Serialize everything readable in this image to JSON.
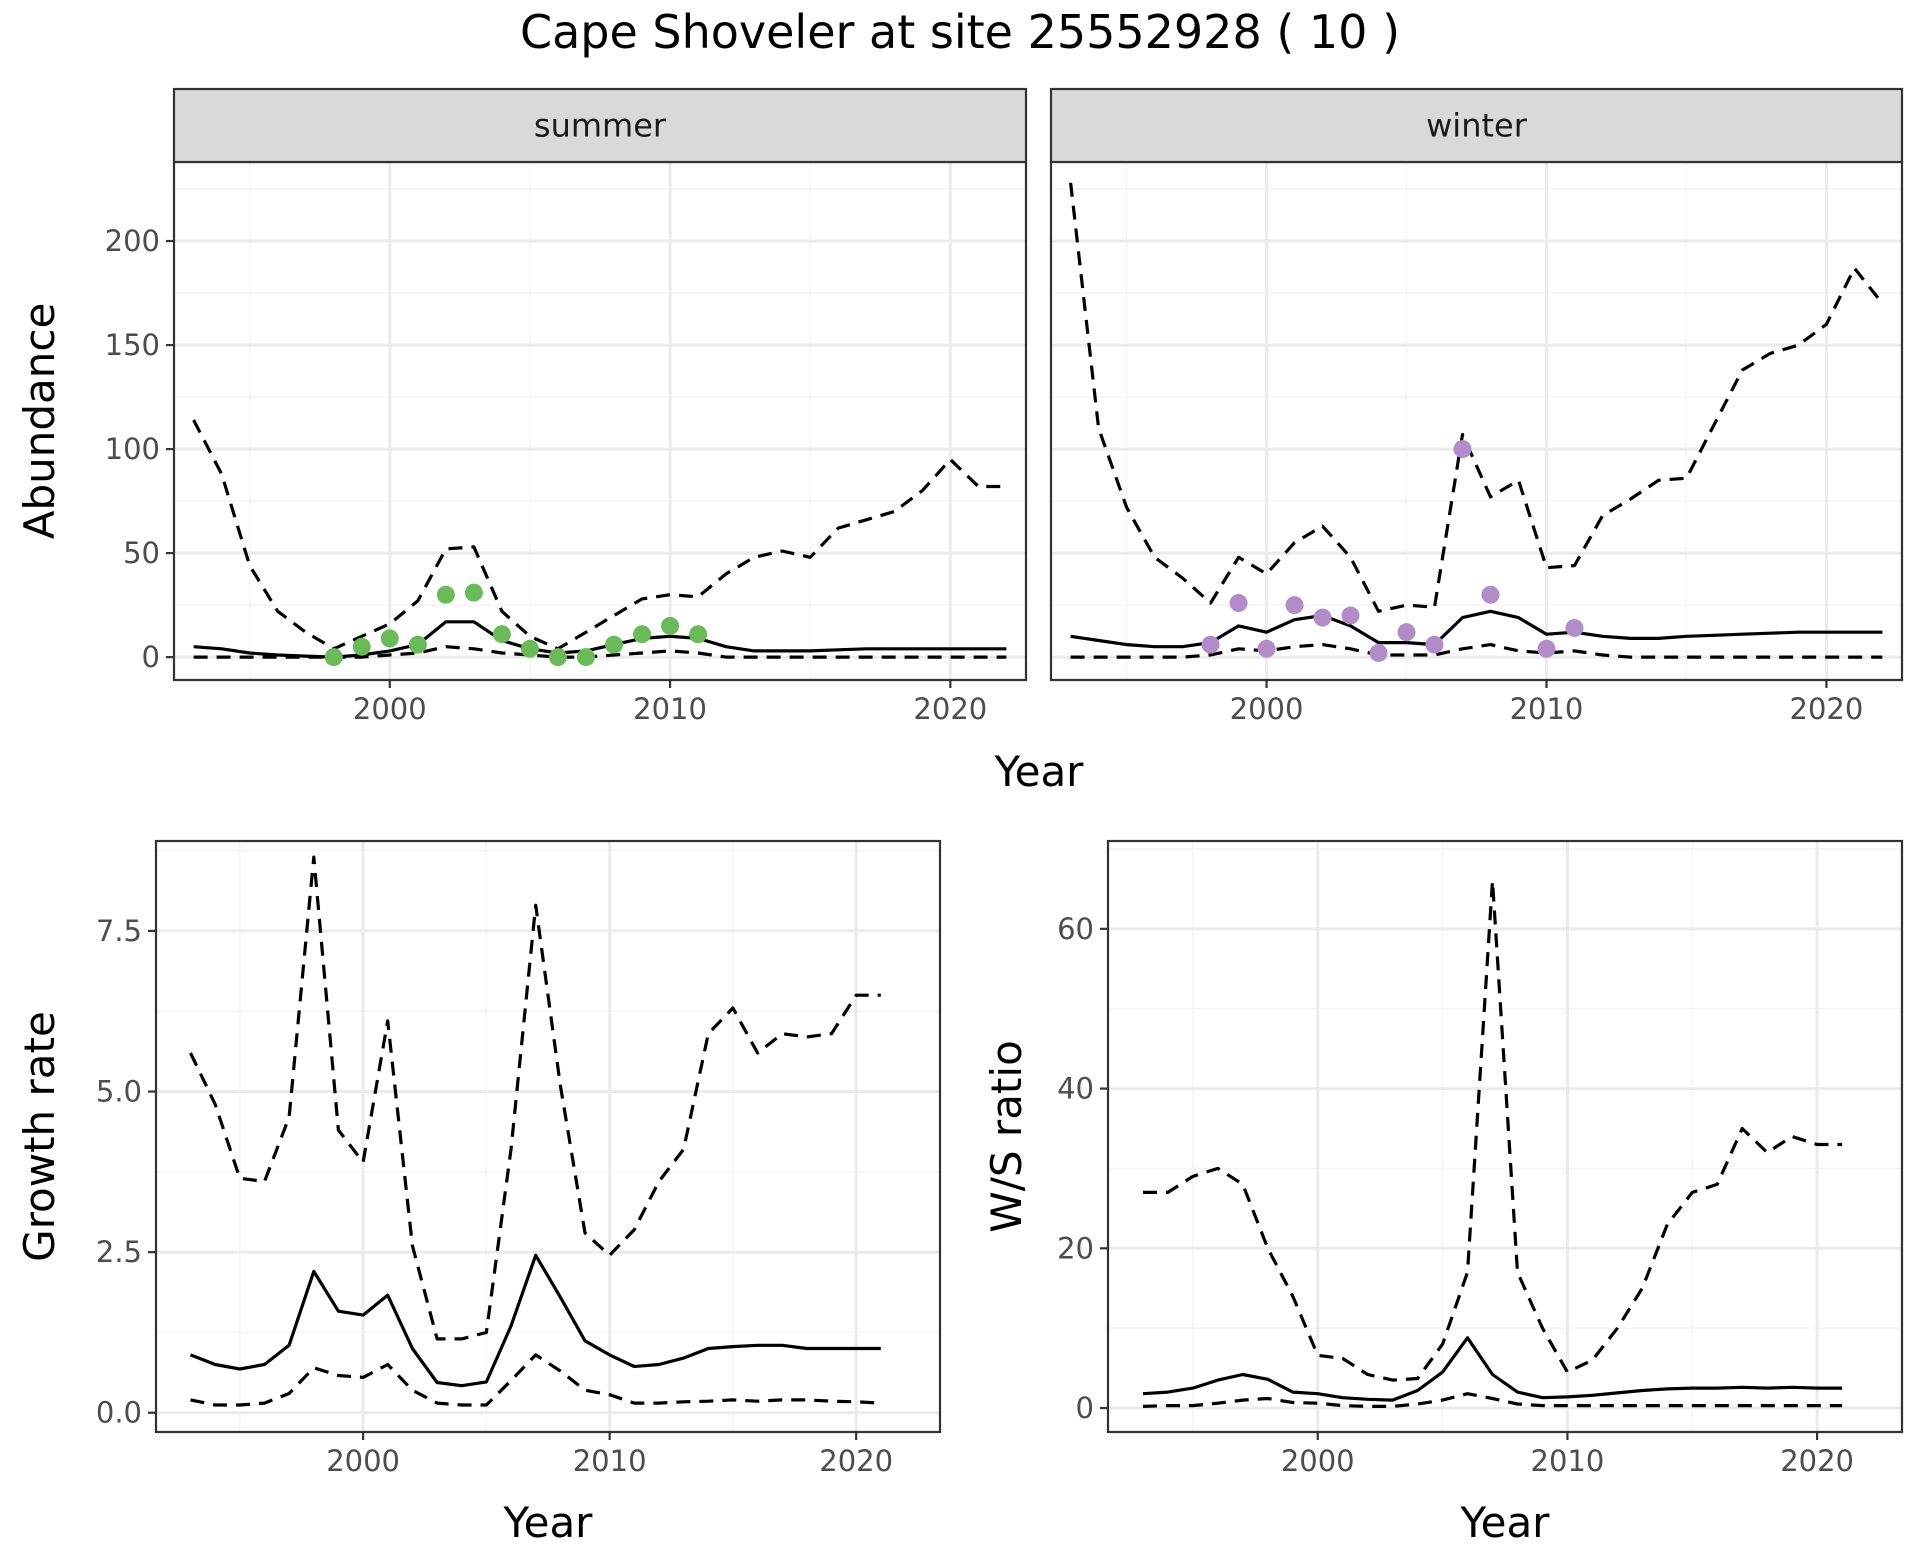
{
  "title": "Cape Shoveler at site 25552928 ( 10 )",
  "colors": {
    "summer_points": "#6aba5a",
    "winter_points": "#b28cc8",
    "lines": "#000000",
    "grid_major": "#ebebeb",
    "grid_minor": "#f4f4f4",
    "strip_fill": "#d9d9d9"
  },
  "chart_data": [
    {
      "type": "line",
      "facet": "summer",
      "xlabel": "Year",
      "ylabel": "Abundance",
      "xlim": [
        1992.3,
        2022.7
      ],
      "ylim": [
        -11,
        238
      ],
      "xticks": [
        2000,
        2010,
        2020
      ],
      "yticks": [
        0,
        50,
        100,
        150,
        200
      ],
      "grid": true,
      "x": [
        1993,
        1994,
        1995,
        1996,
        1997,
        1998,
        1999,
        2000,
        2001,
        2002,
        2003,
        2004,
        2005,
        2006,
        2007,
        2008,
        2009,
        2010,
        2011,
        2012,
        2013,
        2014,
        2015,
        2016,
        2017,
        2018,
        2019,
        2020,
        2021,
        2022
      ],
      "mean": [
        5,
        4,
        2,
        1,
        0.5,
        0,
        1,
        3,
        6,
        17,
        17,
        8,
        4,
        2,
        3,
        6,
        9,
        10,
        9,
        5,
        3,
        3,
        3,
        3.5,
        4,
        4,
        4,
        4,
        4,
        4
      ],
      "lower": [
        0,
        0,
        0,
        0,
        0,
        0,
        0,
        1,
        2,
        5,
        4,
        2,
        1,
        0,
        0,
        1,
        2,
        3,
        2,
        0,
        0,
        0,
        0,
        0,
        0,
        0,
        0,
        0,
        0,
        0
      ],
      "upper": [
        114,
        88,
        44,
        22,
        12,
        4,
        10,
        16,
        27,
        52,
        53,
        22,
        10,
        4,
        12,
        20,
        28,
        30,
        29,
        40,
        48,
        51,
        48,
        62,
        66,
        70,
        80,
        95,
        82,
        82
      ],
      "observed_x": [
        1998,
        1999,
        2000,
        2001,
        2002,
        2003,
        2004,
        2005,
        2006,
        2007,
        2008,
        2009,
        2010,
        2011
      ],
      "observed_y": [
        0,
        5,
        9,
        6,
        30,
        31,
        11,
        4,
        0,
        0,
        6,
        11,
        15,
        11
      ]
    },
    {
      "type": "line",
      "facet": "winter",
      "xlabel": "Year",
      "ylabel": "Abundance",
      "xlim": [
        1992.3,
        2022.7
      ],
      "ylim": [
        -11,
        238
      ],
      "xticks": [
        2000,
        2010,
        2020
      ],
      "yticks": [
        0,
        50,
        100,
        150,
        200
      ],
      "grid": true,
      "x": [
        1993,
        1994,
        1995,
        1996,
        1997,
        1998,
        1999,
        2000,
        2001,
        2002,
        2003,
        2004,
        2005,
        2006,
        2007,
        2008,
        2009,
        2010,
        2011,
        2012,
        2013,
        2014,
        2015,
        2016,
        2017,
        2018,
        2019,
        2020,
        2021,
        2022
      ],
      "mean": [
        10,
        8,
        6,
        5,
        5,
        7,
        15,
        12,
        18,
        20,
        15,
        7,
        7,
        6,
        19,
        22,
        19,
        11,
        12,
        10,
        9,
        9,
        10,
        10.5,
        11,
        11.5,
        12,
        12,
        12,
        12
      ],
      "lower": [
        0,
        0,
        0,
        0,
        0,
        1,
        4,
        3,
        5,
        6,
        4,
        1,
        1,
        1,
        4,
        6,
        3,
        2,
        3,
        1,
        0,
        0,
        0,
        0,
        0,
        0,
        0,
        0,
        0,
        0
      ],
      "upper": [
        228,
        110,
        72,
        48,
        38,
        26,
        48,
        40,
        55,
        63,
        48,
        22,
        25,
        24,
        107,
        77,
        85,
        43,
        44,
        68,
        76,
        85,
        86,
        112,
        138,
        146,
        150,
        160,
        187,
        170
      ],
      "observed_x": [
        1998,
        1999,
        2000,
        2001,
        2002,
        2003,
        2004,
        2005,
        2006,
        2007,
        2008,
        2010,
        2011
      ],
      "observed_y": [
        6,
        26,
        4,
        25,
        19,
        20,
        2,
        12,
        6,
        100,
        30,
        4,
        14
      ]
    },
    {
      "type": "line",
      "xlabel": "Year",
      "ylabel": "Growth rate",
      "xlim": [
        1991.6,
        2023.4
      ],
      "ylim": [
        -0.3,
        8.9
      ],
      "xticks": [
        2000,
        2010,
        2020
      ],
      "yticks": [
        0.0,
        2.5,
        5.0,
        7.5
      ],
      "ytick_labels": [
        "0.0",
        "2.5",
        "5.0",
        "7.5"
      ],
      "grid": true,
      "x": [
        1993,
        1994,
        1995,
        1996,
        1997,
        1998,
        1999,
        2000,
        2001,
        2002,
        2003,
        2004,
        2005,
        2006,
        2007,
        2008,
        2009,
        2010,
        2011,
        2012,
        2013,
        2014,
        2015,
        2016,
        2017,
        2018,
        2019,
        2020,
        2021
      ],
      "mean": [
        0.9,
        0.75,
        0.68,
        0.75,
        1.05,
        2.2,
        1.58,
        1.52,
        1.83,
        1.0,
        0.47,
        0.42,
        0.48,
        1.35,
        2.45,
        1.8,
        1.12,
        0.9,
        0.72,
        0.75,
        0.85,
        1.0,
        1.03,
        1.05,
        1.05,
        1.0,
        1.0,
        1.0,
        1.0
      ],
      "lower": [
        0.2,
        0.12,
        0.12,
        0.15,
        0.3,
        0.7,
        0.58,
        0.55,
        0.75,
        0.35,
        0.15,
        0.12,
        0.12,
        0.5,
        0.9,
        0.65,
        0.35,
        0.28,
        0.15,
        0.15,
        0.17,
        0.18,
        0.2,
        0.18,
        0.2,
        0.2,
        0.18,
        0.17,
        0.15
      ],
      "upper": [
        5.6,
        4.8,
        3.65,
        3.6,
        4.6,
        8.65,
        4.4,
        3.9,
        6.1,
        2.6,
        1.15,
        1.15,
        1.25,
        4.1,
        7.9,
        5.1,
        2.8,
        2.45,
        2.85,
        3.6,
        4.1,
        5.9,
        6.3,
        5.6,
        5.9,
        5.85,
        5.9,
        6.5,
        6.5
      ]
    },
    {
      "type": "line",
      "xlabel": "Year",
      "ylabel": "W/S ratio",
      "xlim": [
        1991.6,
        2023.4
      ],
      "ylim": [
        -3,
        71
      ],
      "xticks": [
        2000,
        2010,
        2020
      ],
      "yticks": [
        0,
        20,
        40,
        60
      ],
      "grid": true,
      "x": [
        1993,
        1994,
        1995,
        1996,
        1997,
        1998,
        1999,
        2000,
        2001,
        2002,
        2003,
        2004,
        2005,
        2006,
        2007,
        2008,
        2009,
        2010,
        2011,
        2012,
        2013,
        2014,
        2015,
        2016,
        2017,
        2018,
        2019,
        2020,
        2021
      ],
      "mean": [
        1.8,
        2.0,
        2.5,
        3.5,
        4.2,
        3.6,
        2.0,
        1.8,
        1.3,
        1.1,
        1.0,
        2.2,
        4.5,
        8.8,
        4.2,
        2.0,
        1.3,
        1.4,
        1.6,
        1.9,
        2.2,
        2.4,
        2.5,
        2.5,
        2.6,
        2.5,
        2.6,
        2.5,
        2.5
      ],
      "lower": [
        0.2,
        0.3,
        0.3,
        0.6,
        1.0,
        1.2,
        0.7,
        0.6,
        0.3,
        0.2,
        0.2,
        0.5,
        1.0,
        1.8,
        1.2,
        0.5,
        0.3,
        0.3,
        0.3,
        0.3,
        0.3,
        0.3,
        0.3,
        0.3,
        0.3,
        0.3,
        0.3,
        0.3,
        0.3
      ],
      "upper": [
        27,
        27,
        29,
        30,
        28,
        20,
        14,
        6.6,
        6.2,
        4.2,
        3.5,
        3.7,
        8,
        17,
        66,
        17,
        10,
        4.5,
        6,
        10,
        15,
        23,
        27,
        28,
        35,
        32,
        34,
        33,
        33
      ]
    }
  ]
}
